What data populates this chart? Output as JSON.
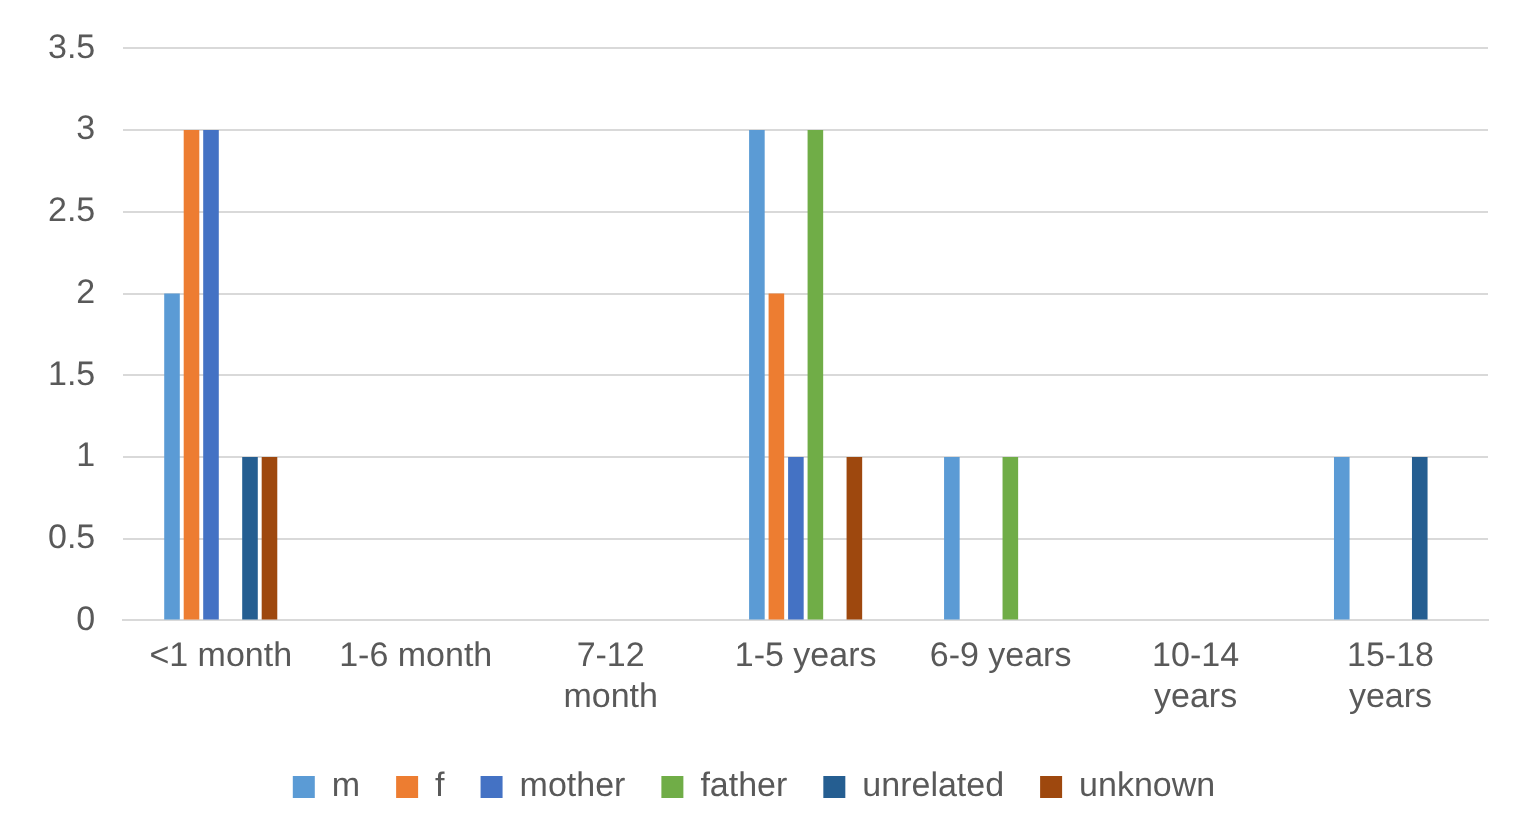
{
  "chart_data": {
    "type": "bar",
    "categories": [
      "<1 month",
      "1-6 month",
      "7-12 month",
      "1-5 years",
      "6-9 years",
      "10-14 years",
      "15-18 years"
    ],
    "series": [
      {
        "name": "m",
        "color": "#5b9bd5",
        "values": [
          2,
          0,
          0,
          3,
          1,
          0,
          1
        ]
      },
      {
        "name": "f",
        "color": "#ed7d31",
        "values": [
          3,
          0,
          0,
          2,
          0,
          0,
          0
        ]
      },
      {
        "name": "mother",
        "color": "#4472c4",
        "values": [
          3,
          0,
          0,
          1,
          0,
          0,
          0
        ]
      },
      {
        "name": "father",
        "color": "#70ad47",
        "values": [
          0,
          0,
          0,
          3,
          1,
          0,
          0
        ]
      },
      {
        "name": "unrelated",
        "color": "#255e91",
        "values": [
          1,
          0,
          0,
          0,
          0,
          0,
          1
        ]
      },
      {
        "name": "unknown",
        "color": "#9e480e",
        "values": [
          1,
          0,
          0,
          1,
          0,
          0,
          0
        ]
      }
    ],
    "ylim": [
      0,
      3.5
    ],
    "yticks": [
      0,
      0.5,
      1,
      1.5,
      2,
      2.5,
      3,
      3.5
    ],
    "grid": "y",
    "legend": "bottom"
  }
}
